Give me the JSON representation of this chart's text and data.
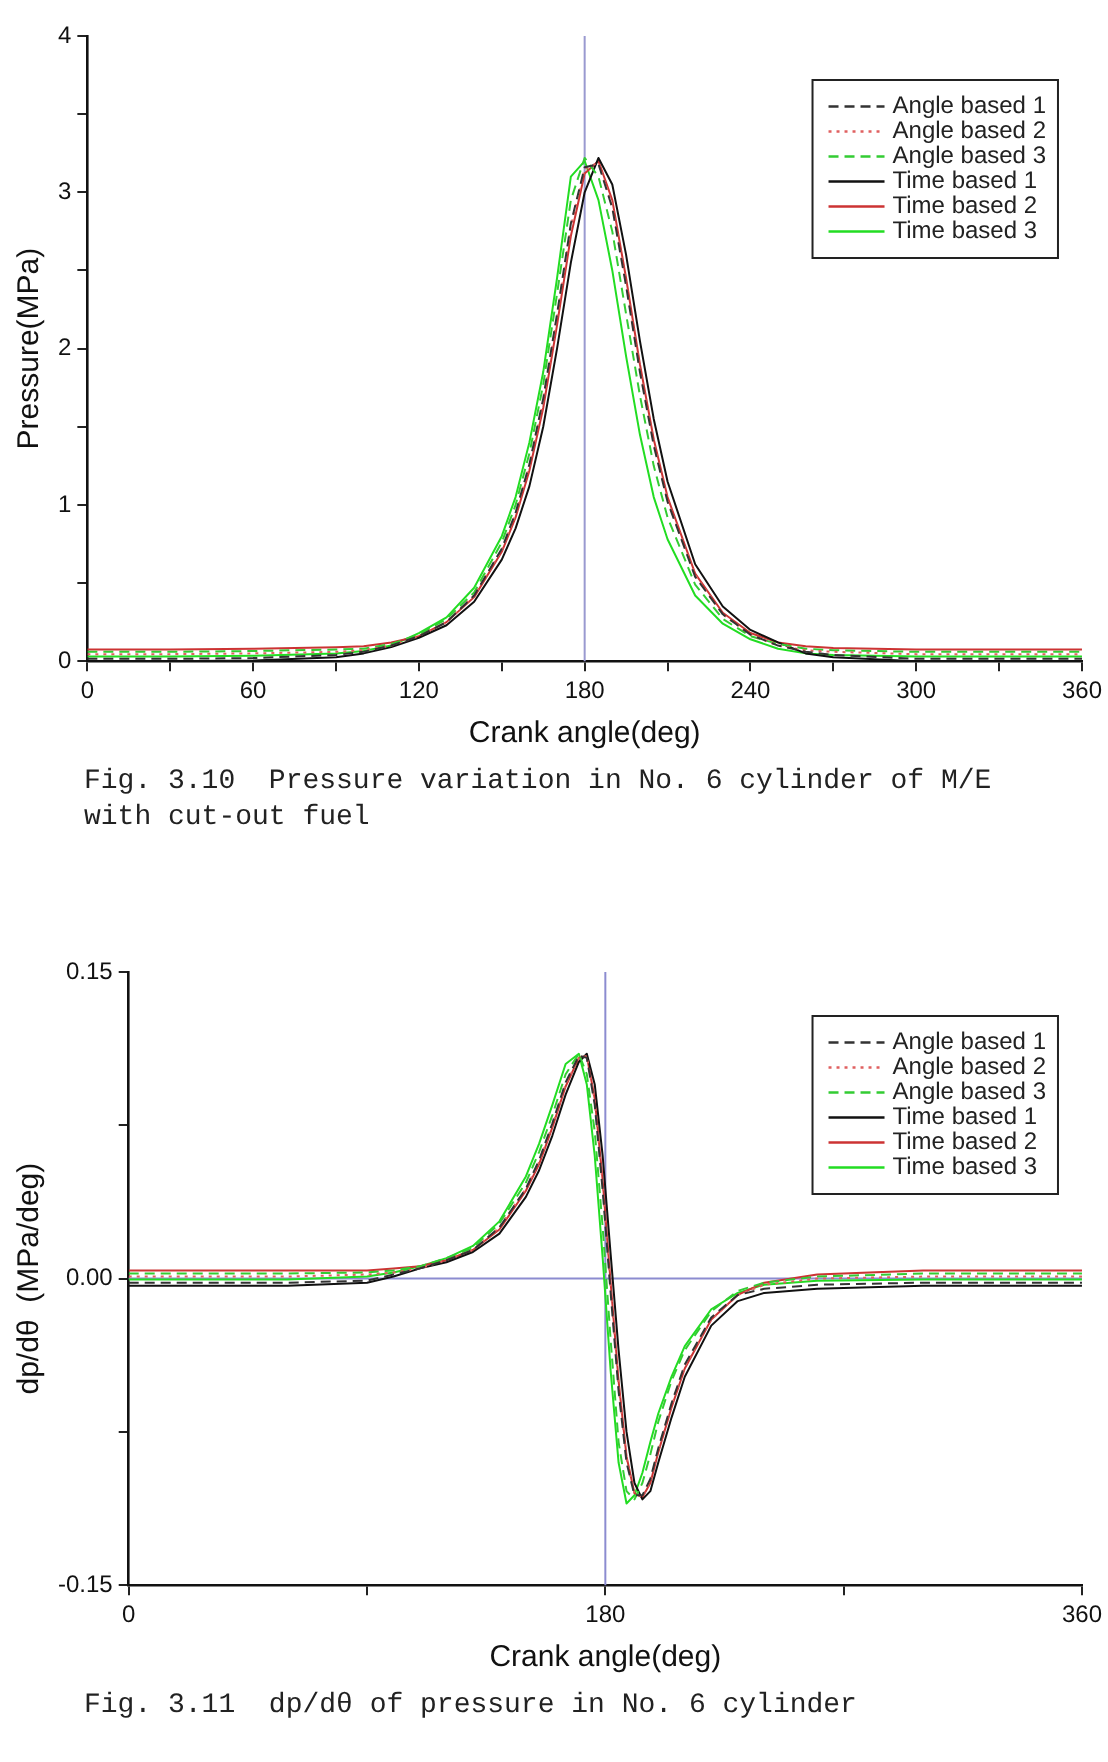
{
  "chart_data": [
    {
      "type": "line",
      "xlabel": "Crank angle(deg)",
      "ylabel": "Pressure(MPa)",
      "x": [
        0,
        30,
        60,
        90,
        100,
        110,
        120,
        130,
        140,
        150,
        155,
        160,
        165,
        170,
        175,
        180,
        185,
        190,
        195,
        200,
        205,
        210,
        220,
        230,
        240,
        250,
        260,
        270,
        300,
        330,
        360
      ],
      "xlim": [
        0,
        360
      ],
      "ylim": [
        0,
        4
      ],
      "xticks": [
        0,
        {
          "value": 30,
          "label": null
        },
        60,
        {
          "value": 90,
          "label": null
        },
        120,
        {
          "value": 150,
          "label": null
        },
        180,
        {
          "value": 210,
          "label": null
        },
        240,
        {
          "value": 270,
          "label": null
        },
        300,
        {
          "value": 330,
          "label": null
        },
        360
      ],
      "yticks": [
        0,
        {
          "value": 0.5,
          "label": null
        },
        1,
        {
          "value": 1.5,
          "label": null
        },
        2,
        {
          "value": 2.5,
          "label": null
        },
        3,
        {
          "value": 3.5,
          "label": null
        },
        4
      ],
      "legend": "top right",
      "ref_lines": [
        {
          "axis": "x",
          "value": 180,
          "color": "#9a9ad0"
        }
      ],
      "series": [
        {
          "name": "Angle based 1",
          "color": "#333333",
          "line_style": "dashed",
          "values": [
            0.015,
            0.015,
            0.02,
            0.04,
            0.06,
            0.1,
            0.16,
            0.25,
            0.42,
            0.72,
            0.95,
            1.26,
            1.68,
            2.22,
            2.8,
            3.16,
            3.18,
            2.9,
            2.4,
            1.85,
            1.38,
            1.02,
            0.54,
            0.3,
            0.17,
            0.1,
            0.06,
            0.04,
            0.015,
            0.015,
            0.015
          ]
        },
        {
          "name": "Angle based 2",
          "color": "#e06060",
          "line_style": "dotted",
          "values": [
            0.045,
            0.045,
            0.05,
            0.06,
            0.07,
            0.1,
            0.16,
            0.25,
            0.42,
            0.71,
            0.94,
            1.25,
            1.66,
            2.2,
            2.78,
            3.15,
            3.19,
            2.92,
            2.42,
            1.87,
            1.4,
            1.03,
            0.55,
            0.3,
            0.17,
            0.1,
            0.07,
            0.06,
            0.045,
            0.045,
            0.045
          ]
        },
        {
          "name": "Angle based 3",
          "color": "#33cc33",
          "line_style": "dashed",
          "values": [
            0.06,
            0.06,
            0.065,
            0.075,
            0.08,
            0.11,
            0.17,
            0.27,
            0.44,
            0.76,
            1.0,
            1.33,
            1.77,
            2.35,
            2.95,
            3.22,
            3.1,
            2.75,
            2.22,
            1.7,
            1.25,
            0.92,
            0.49,
            0.27,
            0.16,
            0.11,
            0.08,
            0.07,
            0.06,
            0.06,
            0.06
          ]
        },
        {
          "name": "Time based 1",
          "color": "#111111",
          "line_style": "solid",
          "values": [
            0,
            0,
            0.005,
            0.025,
            0.05,
            0.09,
            0.15,
            0.23,
            0.38,
            0.65,
            0.85,
            1.12,
            1.5,
            2.0,
            2.55,
            3.0,
            3.22,
            3.05,
            2.6,
            2.05,
            1.55,
            1.15,
            0.62,
            0.35,
            0.2,
            0.12,
            0.05,
            0.025,
            0,
            0,
            0
          ]
        },
        {
          "name": "Time based 2",
          "color": "#cc3333",
          "line_style": "solid",
          "values": [
            0.075,
            0.075,
            0.08,
            0.09,
            0.095,
            0.12,
            0.16,
            0.25,
            0.41,
            0.7,
            0.92,
            1.22,
            1.62,
            2.15,
            2.72,
            3.12,
            3.2,
            2.95,
            2.45,
            1.9,
            1.42,
            1.05,
            0.56,
            0.31,
            0.18,
            0.12,
            0.095,
            0.085,
            0.075,
            0.075,
            0.075
          ]
        },
        {
          "name": "Time based 3",
          "color": "#22dd22",
          "line_style": "solid",
          "values": [
            0.03,
            0.03,
            0.035,
            0.05,
            0.065,
            0.1,
            0.18,
            0.28,
            0.47,
            0.8,
            1.05,
            1.4,
            1.85,
            2.45,
            3.1,
            3.2,
            2.95,
            2.5,
            1.95,
            1.45,
            1.05,
            0.78,
            0.42,
            0.24,
            0.14,
            0.08,
            0.05,
            0.04,
            0.03,
            0.03,
            0.03
          ]
        }
      ],
      "annotations": [
        "Fig. 3.10  Pressure variation in No. 6 cylinder of M/E with cut-out fuel"
      ]
    },
    {
      "type": "line",
      "xlabel": "Crank angle(deg)",
      "ylabel": "dp/dθ  (MPa/deg)",
      "x": [
        0,
        30,
        60,
        90,
        100,
        110,
        120,
        130,
        140,
        150,
        155,
        160,
        165,
        170,
        173,
        176,
        179,
        182,
        185,
        188,
        191,
        194,
        197,
        200,
        205,
        210,
        220,
        230,
        240,
        260,
        300,
        330,
        360
      ],
      "xlim": [
        0,
        360
      ],
      "ylim": [
        -0.15,
        0.15
      ],
      "xticks": [
        0,
        {
          "value": 90,
          "label": null
        },
        180,
        {
          "value": 270,
          "label": null
        },
        360
      ],
      "yticks": [
        {
          "value": -0.15,
          "label": "-0.15"
        },
        {
          "value": -0.075,
          "label": null
        },
        {
          "value": 0,
          "label": "0.00"
        },
        {
          "value": 0.075,
          "label": null
        },
        0.15
      ],
      "legend": "top right",
      "ref_lines": [
        {
          "axis": "x",
          "value": 180,
          "color": "#8c8cd0"
        },
        {
          "axis": "y",
          "value": 0,
          "color": "#8c8cd0"
        }
      ],
      "series": [
        {
          "name": "Angle based 1",
          "color": "#333333",
          "line_style": "dashed",
          "values": [
            -0.002,
            -0.002,
            -0.002,
            -0.001,
            0.002,
            0.005,
            0.009,
            0.014,
            0.025,
            0.044,
            0.058,
            0.076,
            0.096,
            0.109,
            0.108,
            0.085,
            0.043,
            -0.007,
            -0.055,
            -0.09,
            -0.106,
            -0.106,
            -0.098,
            -0.083,
            -0.061,
            -0.042,
            -0.019,
            -0.008,
            -0.005,
            -0.003,
            -0.002,
            -0.002,
            -0.002
          ]
        },
        {
          "name": "Angle based 2",
          "color": "#e06060",
          "line_style": "dotted",
          "values": [
            0.001,
            0.001,
            0.001,
            0.002,
            0.003,
            0.005,
            0.009,
            0.014,
            0.025,
            0.044,
            0.057,
            0.075,
            0.095,
            0.108,
            0.109,
            0.087,
            0.046,
            -0.004,
            -0.052,
            -0.088,
            -0.105,
            -0.107,
            -0.099,
            -0.084,
            -0.062,
            -0.043,
            -0.02,
            -0.008,
            -0.003,
            0,
            0.001,
            0.001,
            0.001
          ]
        },
        {
          "name": "Angle based 3",
          "color": "#33cc33",
          "line_style": "dashed",
          "values": [
            0.0025,
            0.0025,
            0.0025,
            0.003,
            0.004,
            0.006,
            0.01,
            0.015,
            0.027,
            0.047,
            0.062,
            0.08,
            0.1,
            0.11,
            0.1,
            0.072,
            0.025,
            -0.03,
            -0.08,
            -0.104,
            -0.108,
            -0.1,
            -0.086,
            -0.07,
            -0.05,
            -0.035,
            -0.016,
            -0.006,
            -0.002,
            0.001,
            0.0025,
            0.0025,
            0.0025
          ]
        },
        {
          "name": "Time based 1",
          "color": "#111111",
          "line_style": "solid",
          "values": [
            -0.0035,
            -0.0035,
            -0.0035,
            -0.002,
            0.001,
            0.005,
            0.008,
            0.013,
            0.022,
            0.04,
            0.053,
            0.07,
            0.09,
            0.106,
            0.11,
            0.095,
            0.06,
            0.012,
            -0.035,
            -0.075,
            -0.1,
            -0.108,
            -0.104,
            -0.09,
            -0.068,
            -0.048,
            -0.023,
            -0.011,
            -0.007,
            -0.005,
            -0.0035,
            -0.0035,
            -0.0035
          ]
        },
        {
          "name": "Time based 2",
          "color": "#cc3333",
          "line_style": "solid",
          "values": [
            0.004,
            0.004,
            0.004,
            0.004,
            0.005,
            0.006,
            0.009,
            0.014,
            0.024,
            0.043,
            0.056,
            0.074,
            0.094,
            0.108,
            0.109,
            0.088,
            0.048,
            -0.002,
            -0.05,
            -0.087,
            -0.105,
            -0.107,
            -0.1,
            -0.085,
            -0.063,
            -0.044,
            -0.02,
            -0.008,
            -0.002,
            0.002,
            0.004,
            0.004,
            0.004
          ]
        },
        {
          "name": "Time based 3",
          "color": "#22dd22",
          "line_style": "solid",
          "values": [
            -0.0005,
            -0.0005,
            -0.0005,
            0.001,
            0.003,
            0.006,
            0.01,
            0.016,
            0.028,
            0.05,
            0.066,
            0.085,
            0.105,
            0.11,
            0.095,
            0.06,
            0.01,
            -0.045,
            -0.09,
            -0.11,
            -0.106,
            -0.095,
            -0.08,
            -0.066,
            -0.048,
            -0.033,
            -0.015,
            -0.007,
            -0.003,
            -0.001,
            -0.0005,
            -0.0005,
            -0.0005
          ]
        }
      ],
      "annotations": [
        "Fig. 3.11  dp/dθ of pressure in No. 6 cylinder"
      ]
    }
  ]
}
